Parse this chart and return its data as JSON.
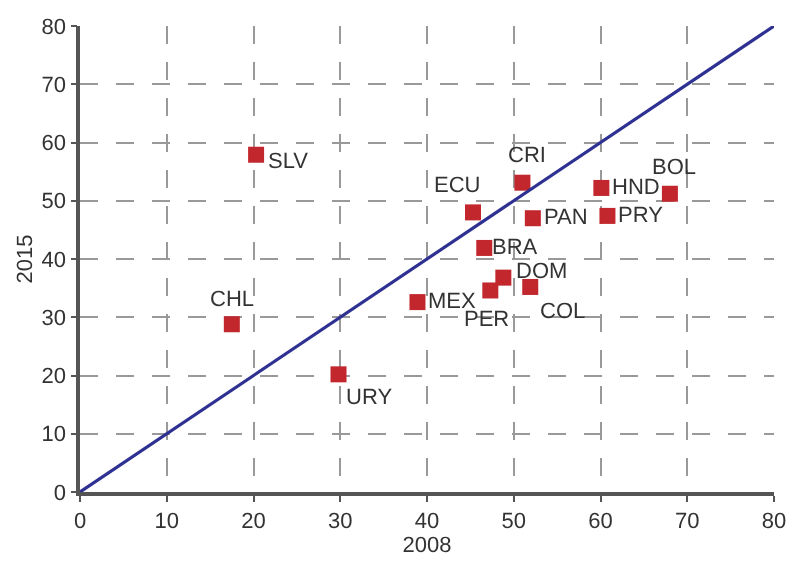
{
  "chart_data": {
    "type": "scatter",
    "xlabel": "2008",
    "ylabel": "2015",
    "xlim": [
      0,
      80
    ],
    "ylim": [
      0,
      80
    ],
    "xticks": [
      0,
      10,
      20,
      30,
      40,
      50,
      60,
      70,
      80
    ],
    "yticks": [
      0,
      10,
      20,
      30,
      40,
      50,
      60,
      70,
      80
    ],
    "grid": true,
    "marker": "square",
    "series": [
      {
        "color": "#c1272d",
        "x": [
          20.3,
          17.5,
          29.8,
          38.9,
          45.3,
          51,
          52.2,
          60.1,
          60.8,
          68,
          46.6,
          48.8,
          47.3,
          51.9
        ],
        "values": [
          57.9,
          28.8,
          20.2,
          32.6,
          48,
          53.1,
          47,
          52.2,
          47.4,
          51.2,
          41.9,
          36.8,
          34.6,
          35.2
        ]
      },
      {
        "type": "line",
        "color": "#2e3192",
        "x": [
          0,
          80
        ],
        "values": [
          0,
          80
        ],
        "marker": "none",
        "line_style": "solid"
      }
    ],
    "annotations": [
      {
        "text": "SLV",
        "x": 20.3,
        "y": 57.9
      },
      {
        "text": "CHL",
        "x": 17.5,
        "y": 28.8
      },
      {
        "text": "URY",
        "x": 29.8,
        "y": 20.2
      },
      {
        "text": "MEX",
        "x": 38.9,
        "y": 32.6
      },
      {
        "text": "ECU",
        "x": 45.3,
        "y": 48
      },
      {
        "text": "CRI",
        "x": 51,
        "y": 53.1
      },
      {
        "text": "PAN",
        "x": 52.2,
        "y": 47
      },
      {
        "text": "HND",
        "x": 60.1,
        "y": 52.2
      },
      {
        "text": "PRY",
        "x": 60.8,
        "y": 47.4
      },
      {
        "text": "BOL",
        "x": 68,
        "y": 51.2
      },
      {
        "text": "BRA",
        "x": 46.6,
        "y": 41.9
      },
      {
        "text": "DOM",
        "x": 48.8,
        "y": 36.8
      },
      {
        "text": "PER",
        "x": 47.3,
        "y": 34.6
      },
      {
        "text": "COL",
        "x": 51.9,
        "y": 35.2
      }
    ]
  }
}
